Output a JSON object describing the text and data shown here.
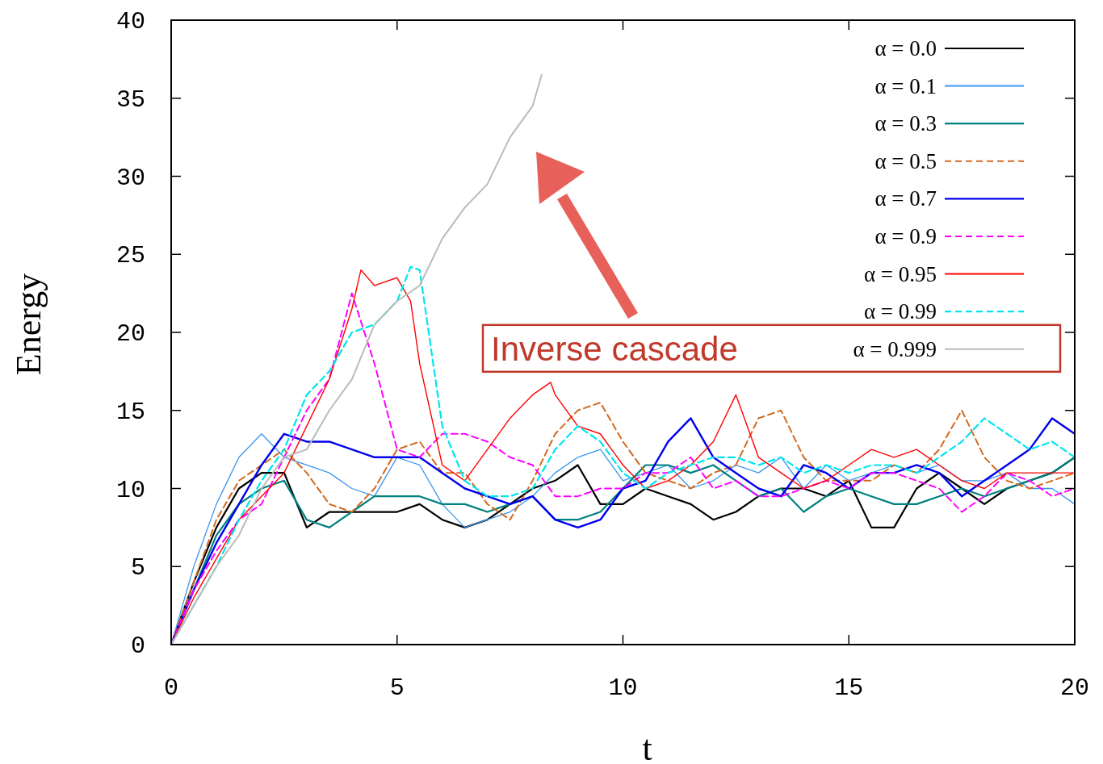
{
  "chart_data": {
    "type": "line",
    "xlabel": "t",
    "ylabel": "Energy",
    "xlim": [
      0,
      20
    ],
    "ylim": [
      0,
      40
    ],
    "xticks": [
      0,
      5,
      10,
      15,
      20
    ],
    "yticks": [
      0,
      5,
      10,
      15,
      20,
      25,
      30,
      35,
      40
    ],
    "legend": "top right",
    "grid": false,
    "annotations": [
      "Inverse cascade"
    ],
    "series": [
      {
        "name": "α = 0.0",
        "color": "#000000",
        "line_style": "solid",
        "x": [
          0,
          0.5,
          1,
          1.5,
          2,
          2.5,
          3,
          3.5,
          4,
          4.5,
          5,
          5.5,
          6,
          6.5,
          7,
          7.5,
          8,
          8.5,
          9,
          9.5,
          10,
          10.5,
          11,
          11.5,
          12,
          12.5,
          13,
          13.5,
          14,
          14.5,
          15,
          15.5,
          16,
          16.5,
          17,
          17.5,
          18,
          18.5,
          19,
          19.5,
          20
        ],
        "values": [
          0,
          4,
          7.5,
          10,
          11,
          11,
          7.5,
          8.5,
          8.5,
          8.5,
          8.5,
          9,
          8,
          7.5,
          8,
          9,
          10,
          10.5,
          11.5,
          9,
          9,
          10,
          9.5,
          9,
          8,
          8.5,
          9.5,
          10,
          10,
          9.5,
          10.5,
          7.5,
          7.5,
          10,
          11,
          10,
          9,
          10,
          10.5,
          11,
          12
        ]
      },
      {
        "name": "α = 0.1",
        "color": "#3a96f0",
        "line_style": "solid",
        "x": [
          0,
          0.5,
          1,
          1.5,
          2,
          2.5,
          3,
          3.5,
          4,
          4.5,
          5,
          5.5,
          6,
          6.5,
          7,
          7.5,
          8,
          8.5,
          9,
          9.5,
          10,
          10.5,
          11,
          11.5,
          12,
          12.5,
          13,
          13.5,
          14,
          14.5,
          15,
          15.5,
          16,
          16.5,
          17,
          17.5,
          18,
          18.5,
          19,
          19.5,
          20
        ],
        "values": [
          0,
          5,
          9,
          12,
          13.5,
          12,
          11.5,
          11,
          10,
          9.5,
          12,
          11.5,
          9,
          7.5,
          8,
          8.5,
          9.5,
          11,
          12,
          12.5,
          10.5,
          11,
          11.5,
          10,
          10.5,
          11.5,
          11,
          12,
          10,
          11.5,
          10.5,
          11,
          11.5,
          11,
          11.5,
          10.5,
          10.5,
          11,
          10,
          10,
          9
        ]
      },
      {
        "name": "α = 0.3",
        "color": "#008080",
        "line_style": "solid",
        "x": [
          0,
          0.5,
          1,
          1.5,
          2,
          2.5,
          3,
          3.5,
          4,
          4.5,
          5,
          5.5,
          6,
          6.5,
          7,
          7.5,
          8,
          8.5,
          9,
          9.5,
          10,
          10.5,
          11,
          11.5,
          12,
          12.5,
          13,
          13.5,
          14,
          14.5,
          15,
          15.5,
          16,
          16.5,
          17,
          17.5,
          18,
          18.5,
          19,
          19.5,
          20
        ],
        "values": [
          0,
          3.5,
          7,
          9,
          10,
          10.5,
          8,
          7.5,
          8.5,
          9.5,
          9.5,
          9.5,
          9,
          9,
          8.5,
          9,
          9.5,
          8,
          8,
          8.5,
          10,
          11.5,
          11.5,
          11,
          11.5,
          10.5,
          9.5,
          10,
          8.5,
          9.5,
          10,
          9.5,
          9,
          9,
          9.5,
          10,
          9.5,
          10,
          10.5,
          11,
          12
        ]
      },
      {
        "name": "α = 0.5",
        "color": "#d2691e",
        "line_style": "dashed",
        "x": [
          0,
          0.5,
          1,
          1.5,
          2,
          2.5,
          3,
          3.5,
          4,
          4.5,
          5,
          5.5,
          6,
          6.5,
          7,
          7.5,
          8,
          8.5,
          9,
          9.5,
          10,
          10.5,
          11,
          11.5,
          12,
          12.5,
          13,
          13.5,
          14,
          14.5,
          15,
          15.5,
          16,
          16.5,
          17,
          17.5,
          18,
          18.5,
          19,
          19.5,
          20
        ],
        "values": [
          0,
          4,
          8,
          10.5,
          11.5,
          12.5,
          11,
          9,
          8.5,
          10,
          12.5,
          13,
          11,
          11,
          9,
          8,
          10.5,
          13.5,
          15,
          15.5,
          13,
          11,
          10.5,
          10,
          11,
          11.5,
          14.5,
          15,
          12,
          10.5,
          10.5,
          10.5,
          11.5,
          11,
          12.5,
          15,
          12,
          10.5,
          10,
          10.5,
          11
        ]
      },
      {
        "name": "α = 0.7",
        "color": "#0000ee",
        "line_style": "solid",
        "x": [
          0,
          0.5,
          1,
          1.5,
          2,
          2.5,
          3,
          3.5,
          4,
          4.5,
          5,
          5.5,
          6,
          6.5,
          7,
          7.5,
          8,
          8.5,
          9,
          9.5,
          10,
          10.5,
          11,
          11.5,
          12,
          12.5,
          13,
          13.5,
          14,
          14.5,
          15,
          15.5,
          16,
          16.5,
          17,
          17.5,
          18,
          18.5,
          19,
          19.5,
          20
        ],
        "values": [
          0,
          3.5,
          6.5,
          9,
          11.5,
          13.5,
          13,
          13,
          12.5,
          12,
          12,
          12,
          11,
          10,
          9.5,
          9,
          9.5,
          8,
          7.5,
          8,
          10,
          10.5,
          13,
          14.5,
          12,
          11,
          10,
          9.5,
          11.5,
          11,
          10,
          11,
          11,
          11.5,
          11,
          9.5,
          10.5,
          11.5,
          12.5,
          14.5,
          13.5
        ]
      },
      {
        "name": "α = 0.9",
        "color": "#ff00ff",
        "line_style": "dashed",
        "x": [
          0,
          0.5,
          1,
          1.5,
          2,
          2.5,
          3,
          3.5,
          4,
          4.5,
          5,
          5.5,
          6,
          6.5,
          7,
          7.5,
          8,
          8.5,
          9,
          9.5,
          10,
          10.5,
          11,
          11.5,
          12,
          12.5,
          13,
          13.5,
          14,
          14.5,
          15,
          15.5,
          16,
          16.5,
          17,
          17.5,
          18,
          18.5,
          19,
          19.5,
          20
        ],
        "values": [
          0,
          3.5,
          6,
          8,
          9,
          12,
          15,
          17,
          22.5,
          18,
          12.5,
          12,
          13.5,
          13.5,
          13,
          12,
          11.5,
          9.5,
          9.5,
          10,
          10,
          11,
          11,
          12,
          10,
          10.5,
          9.5,
          9.5,
          10,
          10.5,
          10,
          11,
          11,
          10.5,
          10,
          8.5,
          9.5,
          11,
          10.5,
          9.5,
          10
        ]
      },
      {
        "name": "α = 0.95",
        "color": "#ff0000",
        "line_style": "solid",
        "x": [
          0,
          0.5,
          1,
          1.5,
          2,
          2.5,
          3,
          3.5,
          4,
          4.2,
          4.5,
          5,
          5.3,
          5.5,
          6,
          6.5,
          7,
          7.5,
          8,
          8.4,
          8.5,
          9,
          9.5,
          10,
          10.5,
          11,
          11.5,
          12,
          12.5,
          13,
          13.5,
          14,
          14.5,
          15,
          15.5,
          16,
          16.5,
          17,
          17.5,
          18,
          18.5,
          19,
          19.5,
          20
        ],
        "values": [
          0,
          3,
          5.5,
          8,
          9.5,
          11,
          14,
          17,
          21.5,
          24,
          23,
          23.5,
          22,
          18,
          11.5,
          10.5,
          12.5,
          14.5,
          16,
          16.8,
          16,
          14,
          13.5,
          11.5,
          10,
          10.5,
          11.5,
          13,
          16,
          12,
          11,
          10,
          10.5,
          11.5,
          12.5,
          12,
          12.5,
          11.5,
          10.5,
          10,
          11,
          11,
          11,
          11
        ]
      },
      {
        "name": "α = 0.99",
        "color": "#00e5ee",
        "line_style": "dashed",
        "x": [
          0,
          0.5,
          1,
          1.5,
          2,
          2.5,
          3,
          3.5,
          4,
          4.5,
          5,
          5.3,
          5.5,
          6,
          6.5,
          7,
          7.5,
          8,
          8.5,
          9,
          9.5,
          10,
          10.5,
          11,
          11.5,
          12,
          12.5,
          13,
          13.5,
          14,
          14.5,
          15,
          15.5,
          16,
          16.5,
          17,
          17.5,
          18,
          18.5,
          19,
          19.5,
          20
        ],
        "values": [
          0,
          2.5,
          5,
          8,
          10.5,
          12.5,
          16,
          17.5,
          20,
          20.5,
          22,
          24.2,
          24,
          14,
          10.5,
          9.5,
          9.5,
          10,
          12.5,
          14,
          13,
          11,
          10,
          11,
          11.5,
          12,
          12,
          11.5,
          12,
          11,
          11.5,
          11,
          11.5,
          11.5,
          11,
          12,
          13,
          14.5,
          13.5,
          12.5,
          13,
          12
        ]
      },
      {
        "name": "α = 0.999",
        "color": "#bbbbbb",
        "line_style": "solid",
        "x": [
          0,
          0.5,
          1,
          1.5,
          2,
          2.5,
          3,
          3.5,
          4,
          4.5,
          5,
          5.5,
          6,
          6.5,
          7,
          7.5,
          8,
          8.2
        ],
        "values": [
          0,
          2.5,
          5,
          7,
          10,
          12,
          12.5,
          15,
          17,
          20.5,
          22,
          23,
          26,
          28,
          29.5,
          32.5,
          34.5,
          36.5
        ]
      }
    ]
  }
}
